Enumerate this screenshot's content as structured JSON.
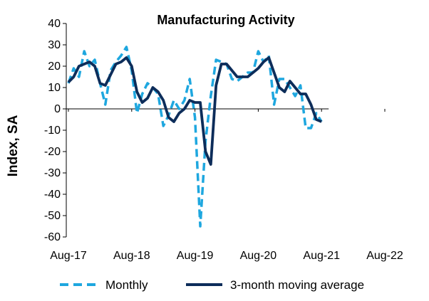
{
  "chart_data": {
    "type": "line",
    "title": "Manufacturing Activity",
    "xlabel": "",
    "ylabel": "Index, SA",
    "ylim": [
      -60,
      40
    ],
    "yticks": [
      40,
      30,
      20,
      10,
      0,
      -10,
      -20,
      -30,
      -40,
      -50,
      -60
    ],
    "x_tick_labels": [
      "Aug-17",
      "Aug-18",
      "Aug-19",
      "Aug-20",
      "Aug-21",
      "Aug-22"
    ],
    "x_tick_months": [
      0,
      12,
      24,
      36,
      48,
      60
    ],
    "grid": false,
    "legend_position": "bottom",
    "series": [
      {
        "name": "Monthly",
        "color": "#1ea7df",
        "style": "dashed",
        "values": [
          12,
          19,
          15,
          27,
          20,
          23,
          12,
          2,
          18,
          22,
          25,
          29,
          18,
          -2,
          7,
          12,
          10,
          7,
          -8,
          -3,
          4,
          0,
          4,
          14,
          -4,
          -55,
          -15,
          6,
          23,
          22,
          21,
          14,
          13,
          15,
          17,
          17,
          27,
          22,
          25,
          2,
          14,
          14,
          10,
          6,
          11,
          -9,
          -9,
          -2,
          -6
        ]
      },
      {
        "name": "3-month moving average",
        "color": "#0d2d5a",
        "style": "solid",
        "values": [
          12.5,
          15,
          20,
          21,
          22,
          20,
          12,
          11,
          16,
          21,
          22,
          24,
          20,
          8,
          3,
          5,
          10,
          8,
          4,
          -4,
          -6,
          -2,
          0,
          4,
          3,
          3,
          -20,
          -26,
          11,
          21,
          21,
          18,
          15,
          15,
          15,
          17,
          19,
          22,
          24,
          17,
          10,
          8,
          13,
          10,
          7,
          7,
          2,
          -5,
          -6
        ]
      }
    ]
  }
}
